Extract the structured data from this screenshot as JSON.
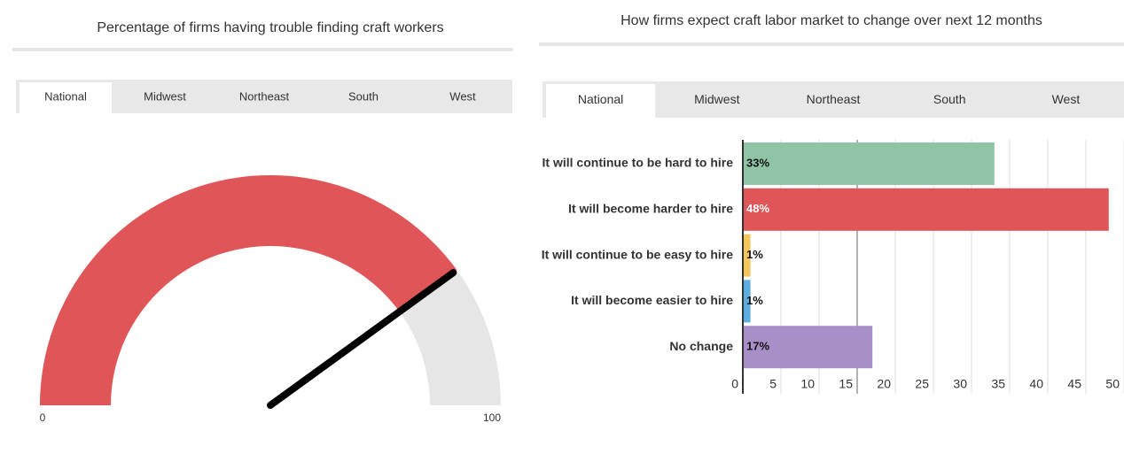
{
  "chart_data": [
    {
      "type": "gauge",
      "title": "Percentage of firms having trouble finding craft workers",
      "tabs": [
        "National",
        "Midwest",
        "Northeast",
        "South",
        "West"
      ],
      "active_tab": "National",
      "value": 80,
      "color": "#e05558",
      "track_color": "#e6e6e6",
      "ylim": [
        0,
        100
      ],
      "yticks": [
        0,
        100
      ]
    },
    {
      "type": "hbar",
      "title": "How firms expect craft labor market to change over next 12 months",
      "tabs": [
        "National",
        "Midwest",
        "Northeast",
        "South",
        "West"
      ],
      "active_tab": "National",
      "categories": [
        "It will continue to be hard to hire",
        "It will become harder to hire",
        "It will continue to be easy to hire",
        "It will become easier to hire",
        "No change"
      ],
      "values": [
        33,
        48,
        1,
        1,
        17
      ],
      "value_labels": [
        "33%",
        "48%",
        "1%",
        "1%",
        "17%"
      ],
      "colors": [
        "#8fc4a6",
        "#e05558",
        "#f5c65a",
        "#5aaee0",
        "#a98fc8"
      ],
      "xlim": [
        0,
        50
      ],
      "xticks": [
        0,
        5,
        10,
        15,
        20,
        25,
        30,
        35,
        40,
        45,
        50
      ],
      "grid": true
    }
  ]
}
